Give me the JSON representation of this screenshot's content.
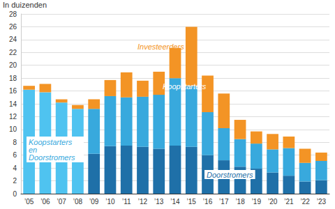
{
  "chart_data": {
    "type": "bar",
    "stacked": true,
    "grid": true,
    "y_label": "In duizenden",
    "categories": [
      "’05",
      "’06",
      "’07",
      "’08",
      "’09",
      "’10",
      "’11",
      "’12",
      "’13",
      "’14",
      "’15",
      "’16",
      "’17",
      "’18",
      "’19",
      "’20",
      "’21",
      "’22",
      "’23"
    ],
    "series": [
      {
        "name": "Koopstarters en Doorstromers",
        "color": "#4fc3f0",
        "values": [
          16.2,
          15.8,
          14.2,
          13.2,
          null,
          null,
          null,
          null,
          null,
          null,
          null,
          null,
          null,
          null,
          null,
          null,
          null,
          null,
          null
        ]
      },
      {
        "name": "Doorstromers",
        "color": "#1f70a8",
        "values": [
          null,
          null,
          null,
          null,
          6.2,
          7.4,
          7.5,
          7.3,
          7.0,
          7.5,
          7.3,
          6.0,
          5.2,
          4.2,
          3.9,
          3.3,
          2.8,
          1.9,
          2.1
        ]
      },
      {
        "name": "Koopstarters",
        "color": "#38a9dd",
        "values": [
          null,
          null,
          null,
          null,
          7.0,
          7.8,
          7.5,
          7.8,
          8.4,
          10.5,
          9.5,
          6.7,
          5.0,
          4.3,
          3.9,
          3.6,
          4.3,
          2.9,
          3.0
        ]
      },
      {
        "name": "Investeerders",
        "color": "#f39425",
        "values": [
          0.6,
          1.3,
          0.5,
          0.6,
          1.5,
          2.5,
          3.9,
          2.5,
          3.6,
          4.7,
          9.2,
          5.7,
          5.4,
          3.0,
          1.9,
          2.4,
          1.8,
          2.2,
          1.3
        ]
      }
    ],
    "ylim": [
      0,
      28
    ],
    "yticks": [
      0,
      2,
      4,
      6,
      8,
      10,
      12,
      14,
      16,
      18,
      20,
      22,
      24,
      26,
      28
    ]
  }
}
